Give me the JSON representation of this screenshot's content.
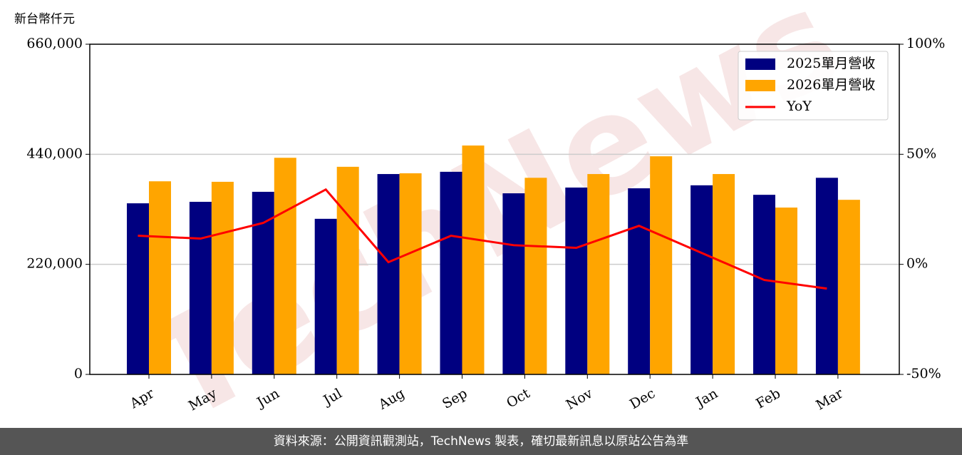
{
  "chart_data": {
    "type": "bar_line",
    "y_label": "新台幣仟元",
    "watermark": "TechNews",
    "categories": [
      "Apr",
      "May",
      "Jun",
      "Jul",
      "Aug",
      "Sep",
      "Oct",
      "Nov",
      "Dec",
      "Jan",
      "Feb",
      "Mar"
    ],
    "series": [
      {
        "name": "2025單月營收",
        "color": "#000080",
        "type": "bar",
        "values": [
          342000,
          345000,
          365000,
          311000,
          400500,
          405000,
          362000,
          373500,
          372000,
          378000,
          359000,
          393000
        ]
      },
      {
        "name": "2026單月營收",
        "color": "#ffa500",
        "type": "bar",
        "values": [
          386000,
          385000,
          433000,
          415000,
          402000,
          457500,
          393000,
          400500,
          436000,
          400500,
          333500,
          349000
        ]
      },
      {
        "name": "YoY",
        "color": "#ff0000",
        "type": "line",
        "axis": "y2",
        "values": [
          13.0,
          11.7,
          18.8,
          34.0,
          1.0,
          13.0,
          8.7,
          7.5,
          17.5,
          5.2,
          -7.1,
          -11.0
        ]
      }
    ],
    "ylim": [
      0,
      660000
    ],
    "yticks": [
      0,
      {
        "value": 220000,
        "label": "220,000"
      },
      {
        "value": 440000,
        "label": "440,000"
      },
      {
        "value": 660000,
        "label": "660,000"
      }
    ],
    "y2lim": [
      -50,
      100
    ],
    "y2ticks": [
      {
        "value": -50,
        "label": "-50%"
      },
      {
        "value": 0,
        "label": "0%"
      },
      {
        "value": 50,
        "label": "50%"
      },
      {
        "value": 100,
        "label": "100%"
      }
    ],
    "grid": true,
    "legend": "upper-right"
  },
  "footer": "資料來源：公開資訊觀測站，TechNews 製表，確切最新訊息以原站公告為準"
}
